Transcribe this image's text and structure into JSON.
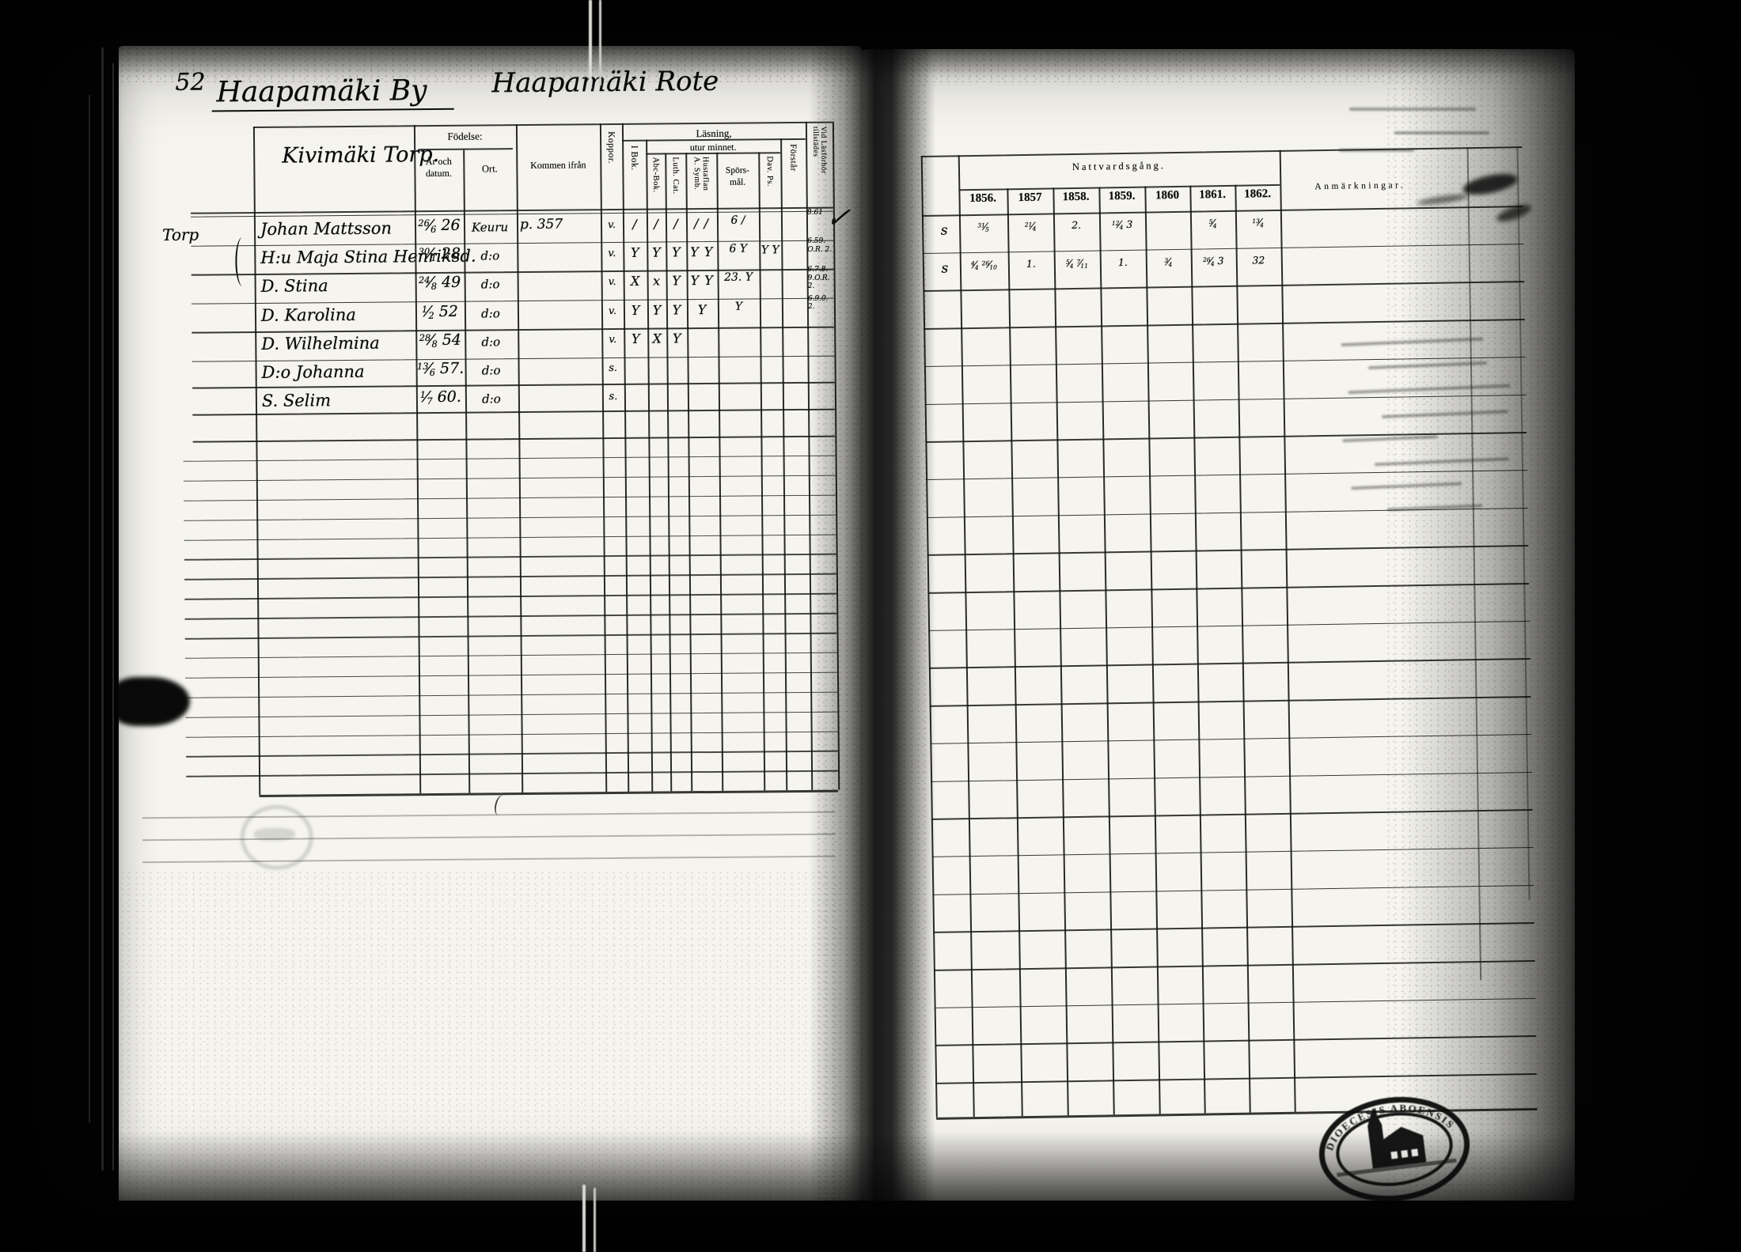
{
  "document": {
    "left_page": {
      "page_number": "52",
      "village_title": "Haapamäki By",
      "rote_title": "Haapamäki Rote",
      "farm_title": "Kivimäki Torp.",
      "margin_label": "Torp",
      "check_mark": "✓",
      "headers": {
        "fodelse": "Födelse:",
        "ar_och_datum": "År och datum.",
        "ort": "Ort.",
        "kommen_ifran": "Kommen ifrån",
        "koppor": "Koppor.",
        "lasning": "Läsning,",
        "utur_minnet": "utur minnet.",
        "i_bok": "I Bok.",
        "abc_bok": "Abc-Bok.",
        "luth_cat": "Luth. Cat.",
        "a_symb": "A. Symb.",
        "hustaflan": "Hustaflan",
        "spors": "Spörs-",
        "mal": "mål.",
        "dav_ps": "Dav. Ps.",
        "forstar": "Förstår",
        "vid_lasforhor": "Vid Läsförhör",
        "tillstades": "tillstädes"
      },
      "rows": [
        {
          "name": "Johan Mattsson",
          "born": "26/6 26",
          "ort": "Keuru",
          "from": "p. 357",
          "koppor": "v.",
          "ibok": "/",
          "abc": "/",
          "luth": "/",
          "symb": "/ /",
          "spors": "6 /",
          "dav": "",
          "attest": "8.61"
        },
        {
          "name": "H:u Maja Stina Henriksd.",
          "born": "30/1 28",
          "ort": "d:o",
          "from": "",
          "koppor": "v.",
          "ibok": "Y",
          "abc": "Y",
          "luth": "Y",
          "symb": "Y Y",
          "spors": "6 Y",
          "dav": "Y Y",
          "attest": "6.59. O.R. 2."
        },
        {
          "name": "D. Stina",
          "born": "24/8 49",
          "ort": "d:o",
          "from": "",
          "koppor": "v.",
          "ibok": "X",
          "abc": "x",
          "luth": "Y",
          "symb": "Y Y",
          "spors": "23. Y",
          "dav": "",
          "attest": "6.7.8. 9.O.R. 2."
        },
        {
          "name": "D. Karolina",
          "born": "1/2 52",
          "ort": "d:o",
          "from": "",
          "koppor": "v.",
          "ibok": "Y",
          "abc": "Y",
          "luth": "Y",
          "symb": "Y",
          "spors": "Y",
          "dav": "",
          "attest": "6.9.0. 2."
        },
        {
          "name": "D. Wilhelmina",
          "born": "28/8 54",
          "ort": "d:o",
          "from": "",
          "koppor": "v.",
          "ibok": "Y",
          "abc": "X",
          "luth": "Y",
          "symb": "",
          "spors": "",
          "dav": "",
          "attest": ""
        },
        {
          "name": "D:o Johanna",
          "born": "13/6 57.",
          "ort": "d:o",
          "from": "",
          "koppor": "s.",
          "ibok": "",
          "abc": "",
          "luth": "",
          "symb": "",
          "spors": "",
          "dav": "",
          "attest": ""
        },
        {
          "name": "S. Selim",
          "born": "1/7 60.",
          "ort": "d:o",
          "from": "",
          "koppor": "s.",
          "ibok": "",
          "abc": "",
          "luth": "",
          "symb": "",
          "spors": "",
          "dav": "",
          "attest": ""
        }
      ]
    },
    "right_page": {
      "group_header": "Nattvardsgång.",
      "years": [
        "1856.",
        "1857",
        "1858.",
        "1859.",
        "1860",
        "1861.",
        "1862."
      ],
      "anm_header": "Anmärkningar.",
      "rows": [
        {
          "mark": "s",
          "cells": [
            "31/5",
            "21/4",
            "2.",
            "12/4 3",
            "",
            "5/4",
            "13/4"
          ]
        },
        {
          "mark": "s",
          "cells": [
            "4/4 26/10",
            "1.",
            "5/4 7/11",
            "1.",
            "3/4",
            "26/4 3",
            "32"
          ]
        }
      ]
    },
    "stamp": {
      "text_top": "DIOECESIS ABOENSIS"
    }
  }
}
